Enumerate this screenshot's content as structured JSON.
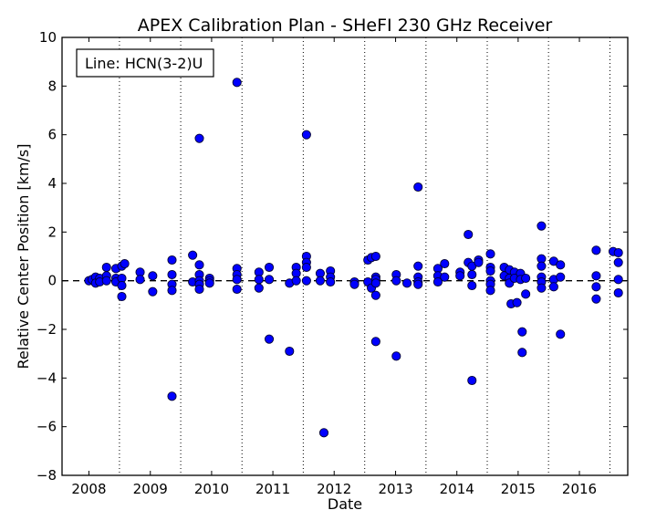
{
  "chart_data": {
    "type": "scatter",
    "title": "APEX Calibration Plan - SHeFI 230 GHz Receiver",
    "xlabel": "Date",
    "ylabel": "Relative Center Position [km/s]",
    "legend": "Line: HCN(3-2)U",
    "legend_position": "top-left",
    "xlim": [
      "2007-07-25",
      "2016-10-15"
    ],
    "ylim": [
      -8,
      10
    ],
    "x_ticks": [
      "2008-01-01",
      "2009-01-01",
      "2010-01-01",
      "2011-01-01",
      "2012-01-01",
      "2013-01-01",
      "2014-01-01",
      "2015-01-01",
      "2016-01-01"
    ],
    "x_tick_labels": [
      "2008",
      "2009",
      "2010",
      "2011",
      "2012",
      "2013",
      "2014",
      "2015",
      "2016"
    ],
    "y_ticks": [
      -8,
      -6,
      -4,
      -2,
      0,
      2,
      4,
      6,
      8,
      10
    ],
    "y_tick_labels": [
      "−8",
      "−6",
      "−4",
      "−2",
      "0",
      "2",
      "4",
      "6",
      "8",
      "10"
    ],
    "vertical_dotted_lines": [
      "2008-07-01",
      "2009-07-01",
      "2010-07-01",
      "2011-07-01",
      "2012-07-01",
      "2013-07-01",
      "2014-07-01",
      "2015-07-01",
      "2016-07-01"
    ],
    "reference_line_y": 0,
    "reference_line_style": "dashed",
    "grid": false,
    "marker_color": "#0000ff",
    "marker_edge_color": "#000033",
    "points": [
      {
        "x": "2008-01-01",
        "y": 0.0
      },
      {
        "x": "2008-01-20",
        "y": 0.05
      },
      {
        "x": "2008-02-10",
        "y": 0.15
      },
      {
        "x": "2008-02-10",
        "y": -0.1
      },
      {
        "x": "2008-03-05",
        "y": 0.1
      },
      {
        "x": "2008-03-05",
        "y": -0.05
      },
      {
        "x": "2008-04-15",
        "y": 0.55
      },
      {
        "x": "2008-04-15",
        "y": 0.2
      },
      {
        "x": "2008-04-15",
        "y": 0.0
      },
      {
        "x": "2008-06-10",
        "y": 0.5
      },
      {
        "x": "2008-06-10",
        "y": 0.1
      },
      {
        "x": "2008-06-10",
        "y": -0.05
      },
      {
        "x": "2008-07-15",
        "y": 0.6
      },
      {
        "x": "2008-07-15",
        "y": 0.1
      },
      {
        "x": "2008-07-15",
        "y": -0.2
      },
      {
        "x": "2008-07-15",
        "y": -0.65
      },
      {
        "x": "2008-08-01",
        "y": 0.7
      },
      {
        "x": "2008-11-01",
        "y": 0.35
      },
      {
        "x": "2008-11-01",
        "y": 0.05
      },
      {
        "x": "2009-01-15",
        "y": 0.2
      },
      {
        "x": "2009-01-15",
        "y": -0.45
      },
      {
        "x": "2009-05-10",
        "y": 0.85
      },
      {
        "x": "2009-05-10",
        "y": 0.25
      },
      {
        "x": "2009-05-10",
        "y": -0.15
      },
      {
        "x": "2009-05-10",
        "y": -0.4
      },
      {
        "x": "2009-05-10",
        "y": -4.75
      },
      {
        "x": "2009-09-10",
        "y": 1.05
      },
      {
        "x": "2009-09-10",
        "y": -0.05
      },
      {
        "x": "2009-10-20",
        "y": 5.85
      },
      {
        "x": "2009-10-20",
        "y": 0.65
      },
      {
        "x": "2009-10-20",
        "y": 0.25
      },
      {
        "x": "2009-10-20",
        "y": 0.0
      },
      {
        "x": "2009-10-20",
        "y": -0.15
      },
      {
        "x": "2009-10-20",
        "y": -0.35
      },
      {
        "x": "2009-12-20",
        "y": 0.1
      },
      {
        "x": "2009-12-20",
        "y": 0.0
      },
      {
        "x": "2009-12-20",
        "y": -0.1
      },
      {
        "x": "2010-06-01",
        "y": 8.15
      },
      {
        "x": "2010-06-01",
        "y": 0.5
      },
      {
        "x": "2010-06-01",
        "y": 0.25
      },
      {
        "x": "2010-06-01",
        "y": 0.05
      },
      {
        "x": "2010-06-01",
        "y": -0.35
      },
      {
        "x": "2010-10-10",
        "y": 0.35
      },
      {
        "x": "2010-10-10",
        "y": 0.05
      },
      {
        "x": "2010-10-10",
        "y": -0.3
      },
      {
        "x": "2010-12-10",
        "y": 0.55
      },
      {
        "x": "2010-12-10",
        "y": 0.05
      },
      {
        "x": "2010-12-10",
        "y": -2.4
      },
      {
        "x": "2011-04-10",
        "y": -0.1
      },
      {
        "x": "2011-04-10",
        "y": -2.9
      },
      {
        "x": "2011-05-20",
        "y": 0.55
      },
      {
        "x": "2011-05-20",
        "y": 0.3
      },
      {
        "x": "2011-05-20",
        "y": 0.0
      },
      {
        "x": "2011-07-20",
        "y": 6.0
      },
      {
        "x": "2011-07-20",
        "y": 1.0
      },
      {
        "x": "2011-07-20",
        "y": 0.75
      },
      {
        "x": "2011-07-20",
        "y": 0.55
      },
      {
        "x": "2011-07-20",
        "y": 0.0
      },
      {
        "x": "2011-10-10",
        "y": 0.3
      },
      {
        "x": "2011-10-10",
        "y": 0.0
      },
      {
        "x": "2011-11-01",
        "y": -6.25
      },
      {
        "x": "2011-12-10",
        "y": 0.4
      },
      {
        "x": "2011-12-10",
        "y": 0.15
      },
      {
        "x": "2011-12-10",
        "y": -0.05
      },
      {
        "x": "2012-05-01",
        "y": -0.05
      },
      {
        "x": "2012-05-01",
        "y": -0.15
      },
      {
        "x": "2012-07-20",
        "y": 0.85
      },
      {
        "x": "2012-07-20",
        "y": -0.05
      },
      {
        "x": "2012-08-10",
        "y": 0.95
      },
      {
        "x": "2012-08-10",
        "y": -0.3
      },
      {
        "x": "2012-09-05",
        "y": 1.0
      },
      {
        "x": "2012-09-05",
        "y": 0.15
      },
      {
        "x": "2012-09-05",
        "y": 0.05
      },
      {
        "x": "2012-09-05",
        "y": -0.1
      },
      {
        "x": "2012-09-05",
        "y": -0.6
      },
      {
        "x": "2012-09-05",
        "y": -2.5
      },
      {
        "x": "2013-01-05",
        "y": 0.25
      },
      {
        "x": "2013-01-05",
        "y": 0.0
      },
      {
        "x": "2013-01-05",
        "y": -3.1
      },
      {
        "x": "2013-03-10",
        "y": -0.1
      },
      {
        "x": "2013-05-15",
        "y": 3.85
      },
      {
        "x": "2013-05-15",
        "y": 0.6
      },
      {
        "x": "2013-05-15",
        "y": 0.15
      },
      {
        "x": "2013-05-15",
        "y": -0.05
      },
      {
        "x": "2013-05-15",
        "y": -0.15
      },
      {
        "x": "2013-09-10",
        "y": 0.5
      },
      {
        "x": "2013-09-10",
        "y": 0.2
      },
      {
        "x": "2013-09-10",
        "y": -0.05
      },
      {
        "x": "2013-10-20",
        "y": 0.7
      },
      {
        "x": "2013-10-20",
        "y": 0.15
      },
      {
        "x": "2014-01-20",
        "y": 0.35
      },
      {
        "x": "2014-01-20",
        "y": 0.2
      },
      {
        "x": "2014-03-10",
        "y": 1.9
      },
      {
        "x": "2014-03-10",
        "y": 0.75
      },
      {
        "x": "2014-04-01",
        "y": 0.6
      },
      {
        "x": "2014-04-01",
        "y": 0.25
      },
      {
        "x": "2014-04-01",
        "y": -0.2
      },
      {
        "x": "2014-04-01",
        "y": -4.1
      },
      {
        "x": "2014-05-10",
        "y": 0.85
      },
      {
        "x": "2014-05-10",
        "y": 0.75
      },
      {
        "x": "2014-07-20",
        "y": 1.1
      },
      {
        "x": "2014-07-20",
        "y": 0.55
      },
      {
        "x": "2014-07-20",
        "y": 0.4
      },
      {
        "x": "2014-07-20",
        "y": 0.0
      },
      {
        "x": "2014-07-20",
        "y": -0.15
      },
      {
        "x": "2014-07-20",
        "y": -0.4
      },
      {
        "x": "2014-10-10",
        "y": 0.55
      },
      {
        "x": "2014-10-10",
        "y": 0.2
      },
      {
        "x": "2014-11-10",
        "y": 0.45
      },
      {
        "x": "2014-11-10",
        "y": 0.1
      },
      {
        "x": "2014-11-10",
        "y": -0.1
      },
      {
        "x": "2014-11-20",
        "y": -0.95
      },
      {
        "x": "2014-12-10",
        "y": 0.35
      },
      {
        "x": "2014-12-10",
        "y": 0.1
      },
      {
        "x": "2014-12-25",
        "y": -0.9
      },
      {
        "x": "2015-01-15",
        "y": 0.3
      },
      {
        "x": "2015-01-15",
        "y": 0.05
      },
      {
        "x": "2015-01-25",
        "y": -2.1
      },
      {
        "x": "2015-01-25",
        "y": -2.95
      },
      {
        "x": "2015-02-15",
        "y": 0.1
      },
      {
        "x": "2015-02-15",
        "y": -0.55
      },
      {
        "x": "2015-05-20",
        "y": 2.25
      },
      {
        "x": "2015-05-20",
        "y": 0.9
      },
      {
        "x": "2015-05-20",
        "y": 0.6
      },
      {
        "x": "2015-05-20",
        "y": 0.15
      },
      {
        "x": "2015-05-20",
        "y": -0.05
      },
      {
        "x": "2015-05-20",
        "y": -0.3
      },
      {
        "x": "2015-08-01",
        "y": 0.8
      },
      {
        "x": "2015-08-01",
        "y": 0.05
      },
      {
        "x": "2015-08-01",
        "y": -0.25
      },
      {
        "x": "2015-09-10",
        "y": 0.65
      },
      {
        "x": "2015-09-10",
        "y": 0.15
      },
      {
        "x": "2015-09-10",
        "y": -2.2
      },
      {
        "x": "2016-04-10",
        "y": 1.25
      },
      {
        "x": "2016-04-10",
        "y": 0.2
      },
      {
        "x": "2016-04-10",
        "y": -0.25
      },
      {
        "x": "2016-04-10",
        "y": -0.75
      },
      {
        "x": "2016-07-20",
        "y": 1.2
      },
      {
        "x": "2016-08-20",
        "y": 1.15
      },
      {
        "x": "2016-08-20",
        "y": 0.05
      },
      {
        "x": "2016-08-20",
        "y": -0.5
      },
      {
        "x": "2016-08-20",
        "y": 0.75
      }
    ]
  }
}
